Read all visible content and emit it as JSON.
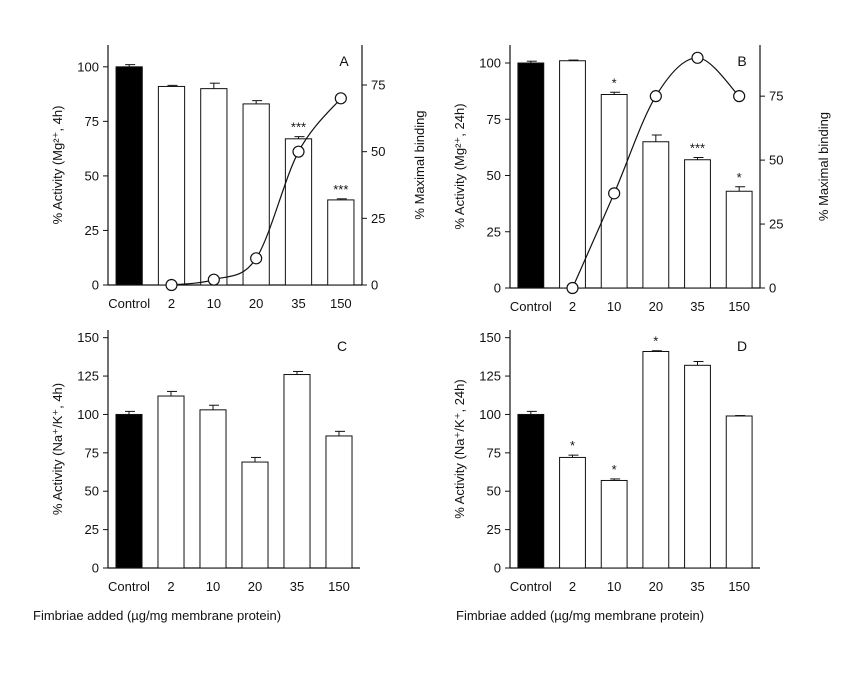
{
  "chart_data": [
    {
      "type": "bar",
      "panel_label": "A",
      "categories": [
        "Control",
        "2",
        "10",
        "20",
        "35",
        "150"
      ],
      "values": [
        100,
        91,
        90,
        83,
        67,
        39
      ],
      "errors": [
        1,
        0.5,
        2.5,
        1.5,
        1,
        0.5
      ],
      "control_index": 0,
      "significance": [
        "",
        "",
        "",
        "",
        "***",
        "***"
      ],
      "ylabel": "% Activity (Mg²⁺, 4h)",
      "ylim": [
        0,
        110
      ],
      "yticks": [
        0,
        25,
        50,
        75,
        100
      ],
      "secondary": {
        "type": "line",
        "ylabel": "% Maximal binding",
        "ylim": [
          0,
          90
        ],
        "yticks": [
          0,
          25,
          50,
          75
        ],
        "values": [
          null,
          0,
          2,
          10,
          50,
          70
        ]
      }
    },
    {
      "type": "bar",
      "panel_label": "B",
      "categories": [
        "Control",
        "2",
        "10",
        "20",
        "35",
        "150"
      ],
      "values": [
        100,
        101,
        86,
        65,
        57,
        43
      ],
      "errors": [
        0.8,
        0.3,
        1,
        3,
        1,
        2
      ],
      "control_index": 0,
      "significance": [
        "",
        "",
        "*",
        "",
        "***",
        "*"
      ],
      "ylabel": "% Activity (Mg²⁺, 24h)",
      "ylim": [
        0,
        108
      ],
      "yticks": [
        0,
        25,
        50,
        75,
        100
      ],
      "secondary": {
        "type": "line",
        "ylabel": "% Maximal binding",
        "ylim": [
          0,
          95
        ],
        "yticks": [
          0,
          25,
          50,
          75
        ],
        "values": [
          null,
          0,
          37,
          75,
          90,
          75
        ]
      }
    },
    {
      "type": "bar",
      "panel_label": "C",
      "categories": [
        "Control",
        "2",
        "10",
        "20",
        "35",
        "150"
      ],
      "values": [
        100,
        112,
        103,
        69,
        126,
        86
      ],
      "errors": [
        2,
        3,
        3,
        3,
        2,
        3
      ],
      "control_index": 0,
      "significance": [
        "",
        "",
        "",
        "",
        "",
        ""
      ],
      "ylabel": "% Activity (Na⁺/K⁺, 4h)",
      "ylim": [
        0,
        155
      ],
      "yticks": [
        0,
        25,
        50,
        75,
        100,
        125,
        150
      ]
    },
    {
      "type": "bar",
      "panel_label": "D",
      "categories": [
        "Control",
        "2",
        "10",
        "20",
        "35",
        "150"
      ],
      "values": [
        100,
        72,
        57,
        141,
        132,
        99
      ],
      "errors": [
        2,
        1.5,
        1,
        0.5,
        2.5,
        0.3
      ],
      "control_index": 0,
      "significance": [
        "",
        "*",
        "*",
        "*",
        "",
        ""
      ],
      "ylabel": "% Activity (Na⁺/K⁺, 24h)",
      "ylim": [
        0,
        155
      ],
      "yticks": [
        0,
        25,
        50,
        75,
        100,
        125,
        150
      ]
    }
  ],
  "footer": {
    "left": "Fimbriae added (µg/mg membrane protein)",
    "right": "Fimbriae added (µg/mg membrane protein)"
  }
}
